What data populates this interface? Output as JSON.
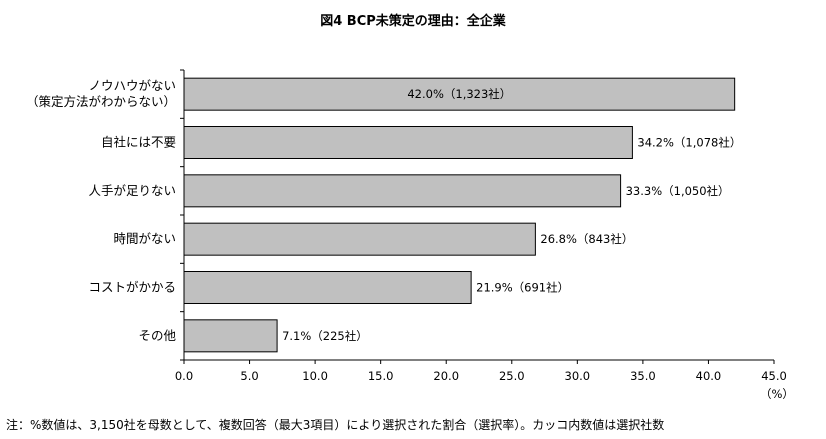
{
  "chart_data": {
    "type": "bar",
    "orientation": "horizontal",
    "title": "図4 BCP未策定の理由：全企業",
    "categories": [
      [
        "ノウハウがない",
        "（策定方法がわからない）"
      ],
      [
        "自社には不要"
      ],
      [
        "人手が足りない"
      ],
      [
        "時間がない"
      ],
      [
        "コストがかかる"
      ],
      [
        "その他"
      ]
    ],
    "values": [
      42.0,
      34.2,
      33.3,
      26.8,
      21.9,
      7.1
    ],
    "value_labels": [
      "42.0%（1,323社）",
      "34.2%（1,078社）",
      "33.3%（1,050社）",
      "26.8%（843社）",
      "21.9%（691社）",
      "7.1%（225社）"
    ],
    "xlim": [
      0,
      45
    ],
    "x_ticks": [
      "0.0",
      "5.0",
      "10.0",
      "15.0",
      "20.0",
      "25.0",
      "30.0",
      "35.0",
      "40.0",
      "45.0"
    ],
    "x_unit": "（%）",
    "grid": false,
    "colors": {
      "bar_fill": "#c0c0c0",
      "bar_stroke": "#000000"
    }
  },
  "footnote": "注：%数値は、3,150社を母数として、複数回答（最大3項目）により選択された割合（選択率）。カッコ内数値は選択社数"
}
